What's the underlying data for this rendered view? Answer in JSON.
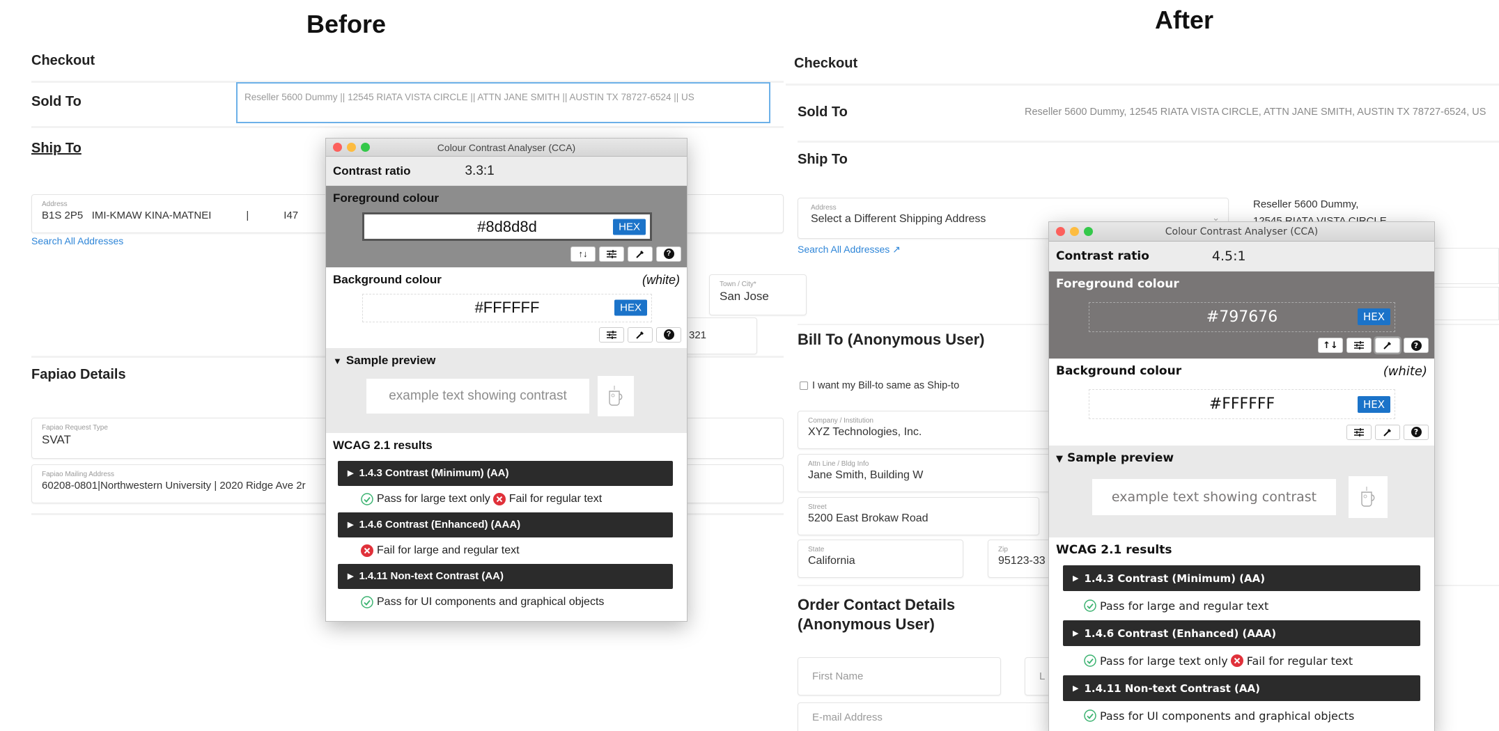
{
  "before": {
    "heading": "Before",
    "checkout": "Checkout",
    "sold_to_label": "Sold To",
    "sold_to_value": "Reseller 5600 Dummy || 12545 RIATA VISTA CIRCLE || ATTN JANE SMITH || AUSTIN TX 78727-6524 || US",
    "ship_to": "Ship To",
    "address": {
      "label": "Address",
      "value": "B1S 2P5   IMI-KMAW KINA-MATNEI            |            I47"
    },
    "search_link": "Search All Addresses",
    "town": {
      "label": "Town / City*",
      "value": "San Jose"
    },
    "partial_value": "321",
    "fapiao_title": "Fapiao Details",
    "fapiao_type": {
      "label": "Fapiao Request Type",
      "value": "SVAT"
    },
    "fapiao_mailing": {
      "label": "Fapiao Mailing Address",
      "value": "60208-0801|Northwestern University | 2020 Ridge Ave 2r"
    },
    "cca": {
      "title": "Colour Contrast Analyser (CCA)",
      "contrast_label": "Contrast ratio",
      "ratio": "3.3:1",
      "fg_label": "Foreground colour",
      "fg_value": "#8d8d8d",
      "fg_color": "#8d8d8d",
      "format": "HEX",
      "bg_label": "Background colour",
      "bg_name": "(white)",
      "bg_value": "#FFFFFF",
      "sample_label": "Sample preview",
      "sample_text": "example text showing contrast",
      "wcag_title": "WCAG 2.1 results",
      "criteria": [
        {
          "title": "1.4.3 Contrast (Minimum) (AA)",
          "results": [
            {
              "status": "pass",
              "text": "Pass for large text only"
            },
            {
              "status": "fail",
              "text": "Fail for regular text"
            }
          ]
        },
        {
          "title": "1.4.6 Contrast (Enhanced) (AAA)",
          "results": [
            {
              "status": "fail",
              "text": "Fail for large and regular text"
            }
          ]
        },
        {
          "title": "1.4.11 Non-text Contrast (AA)",
          "results": [
            {
              "status": "pass",
              "text": "Pass for UI components and graphical objects"
            }
          ]
        }
      ]
    }
  },
  "after": {
    "heading": "After",
    "checkout": "Checkout",
    "sold_to_label": "Sold To",
    "sold_to_value": "Reseller 5600 Dummy, 12545 RIATA VISTA CIRCLE, ATTN JANE SMITH, AUSTIN TX 78727-6524, US",
    "ship_to": "Ship To",
    "address": {
      "label": "Address",
      "value": "Select a Different Shipping Address"
    },
    "ship_address_lines": [
      "Reseller 5600 Dummy,",
      "12545 RIATA VISTA CIRCLE"
    ],
    "search_link": "Search All Addresses ↗",
    "bill_to": "Bill To (Anonymous User)",
    "same_as_ship": "I want my Bill-to same as Ship-to",
    "company": {
      "label": "Company / Institution",
      "value": "XYZ Technologies, Inc."
    },
    "attn": {
      "label": "Attn Line / Bldg Info",
      "value": "Jane Smith, Building W"
    },
    "street": {
      "label": "Street",
      "value": "5200 East Brokaw Road"
    },
    "state": {
      "label": "State",
      "value": "California"
    },
    "zip": {
      "label": "Zip",
      "value": "95123-33"
    },
    "order_contact_line1": "Order Contact Details",
    "order_contact_line2": "(Anonymous User)",
    "first_name_placeholder": "First Name",
    "last_name_placeholder": "L",
    "email_placeholder": "E-mail Address",
    "cca": {
      "title": "Colour Contrast Analyser (CCA)",
      "contrast_label": "Contrast ratio",
      "ratio": "4.5:1",
      "fg_label": "Foreground colour",
      "fg_value": "#797676",
      "fg_color": "#797676",
      "format": "HEX",
      "bg_label": "Background colour",
      "bg_name": "(white)",
      "bg_value": "#FFFFFF",
      "sample_label": "Sample preview",
      "sample_text": "example text showing contrast",
      "wcag_title": "WCAG 2.1 results",
      "criteria": [
        {
          "title": "1.4.3 Contrast (Minimum) (AA)",
          "results": [
            {
              "status": "pass",
              "text": "Pass for large and regular text"
            }
          ]
        },
        {
          "title": "1.4.6 Contrast (Enhanced) (AAA)",
          "results": [
            {
              "status": "pass",
              "text": "Pass for large text only"
            },
            {
              "status": "fail",
              "text": "Fail for regular text"
            }
          ]
        },
        {
          "title": "1.4.11 Non-text Contrast (AA)",
          "results": [
            {
              "status": "pass",
              "text": "Pass for UI components and graphical objects"
            }
          ]
        }
      ]
    }
  }
}
